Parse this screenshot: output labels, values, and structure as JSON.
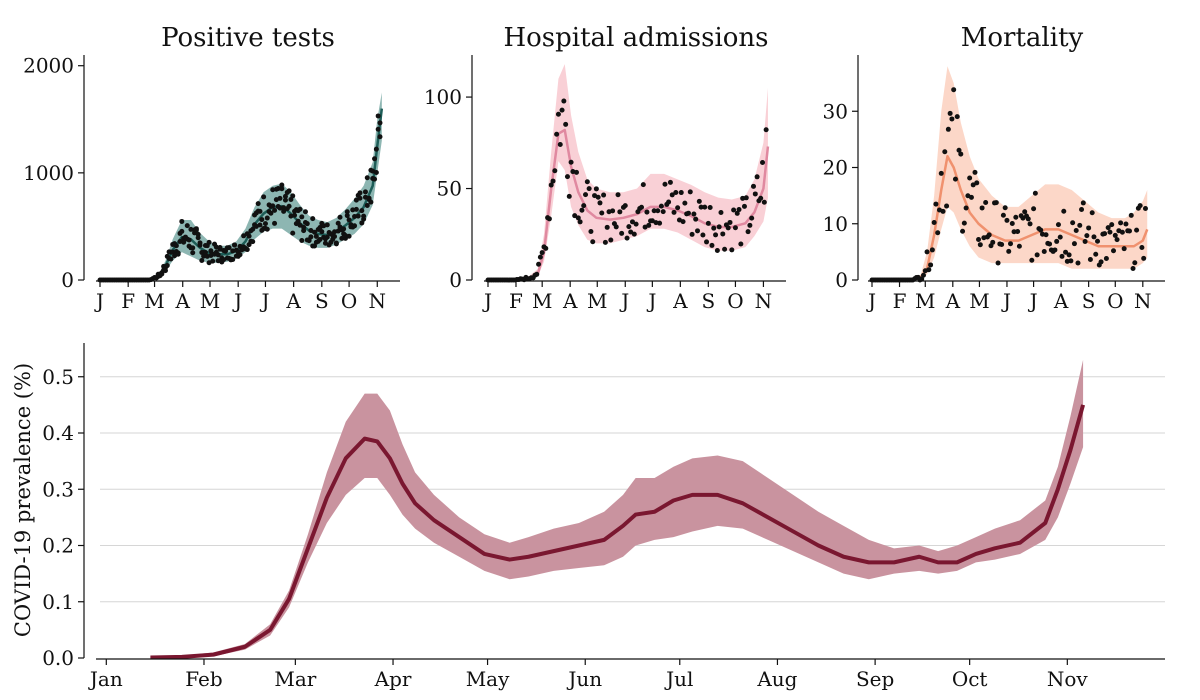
{
  "chart_data": [
    {
      "type": "line",
      "title": "Positive tests",
      "ylim": [
        0,
        2100
      ],
      "yticks": [
        "0",
        "1000",
        "2000"
      ],
      "ytick_values": [
        0,
        1000,
        2000
      ],
      "xlim": [
        0,
        330
      ],
      "xticks": [
        "J",
        "F",
        "M",
        "A",
        "M",
        "J",
        "J",
        "A",
        "S",
        "O",
        "N"
      ],
      "xtick_values": [
        0,
        31,
        60,
        91,
        121,
        152,
        182,
        213,
        244,
        274,
        305
      ],
      "series": [
        {
          "kind": "band",
          "color": "#2f7a72",
          "x": [
            0,
            40,
            55,
            65,
            72,
            80,
            90,
            100,
            110,
            120,
            130,
            140,
            150,
            160,
            170,
            180,
            190,
            200,
            210,
            220,
            230,
            240,
            250,
            260,
            270,
            280,
            290,
            300,
            305,
            310
          ],
          "lower": [
            0,
            0,
            0,
            20,
            80,
            180,
            260,
            220,
            180,
            160,
            160,
            170,
            200,
            260,
            380,
            450,
            480,
            480,
            420,
            360,
            320,
            300,
            300,
            330,
            380,
            430,
            520,
            700,
            1000,
            1300
          ],
          "upper": [
            0,
            0,
            0,
            60,
            180,
            380,
            560,
            560,
            440,
            360,
            320,
            320,
            360,
            480,
            680,
            820,
            880,
            900,
            820,
            700,
            600,
            560,
            540,
            580,
            660,
            760,
            880,
            1100,
            1500,
            1750
          ]
        },
        {
          "kind": "line",
          "color": "#1d5d57",
          "x": [
            0,
            40,
            55,
            65,
            72,
            80,
            90,
            100,
            110,
            120,
            130,
            140,
            150,
            160,
            170,
            180,
            190,
            200,
            210,
            220,
            230,
            240,
            250,
            260,
            270,
            280,
            290,
            300,
            305,
            310
          ],
          "y": [
            0,
            0,
            0,
            40,
            130,
            280,
            400,
            380,
            300,
            250,
            240,
            240,
            270,
            360,
            520,
            620,
            680,
            690,
            620,
            530,
            460,
            430,
            420,
            450,
            510,
            580,
            680,
            880,
            1250,
            1600
          ]
        }
      ],
      "scatter_color": "#111111"
    },
    {
      "type": "line",
      "title": "Hospital admissions",
      "ylim": [
        0,
        123
      ],
      "yticks": [
        "0",
        "50",
        "100"
      ],
      "ytick_values": [
        0,
        50,
        100
      ],
      "xlim": [
        0,
        330
      ],
      "xticks": [
        "J",
        "F",
        "M",
        "A",
        "M",
        "J",
        "J",
        "A",
        "S",
        "O",
        "N"
      ],
      "xtick_values": [
        0,
        31,
        60,
        91,
        121,
        152,
        182,
        213,
        244,
        274,
        305
      ],
      "series": [
        {
          "kind": "band",
          "color": "#f8c8cf",
          "x": [
            0,
            30,
            45,
            55,
            62,
            70,
            78,
            85,
            92,
            100,
            110,
            120,
            135,
            150,
            165,
            180,
            195,
            210,
            225,
            240,
            255,
            270,
            285,
            295,
            305,
            310
          ],
          "lower": [
            0,
            0,
            0,
            2,
            10,
            35,
            65,
            60,
            40,
            30,
            22,
            20,
            20,
            22,
            24,
            28,
            28,
            26,
            22,
            18,
            16,
            16,
            18,
            24,
            32,
            45
          ],
          "upper": [
            0,
            0,
            2,
            6,
            25,
            70,
            110,
            118,
            90,
            70,
            55,
            50,
            48,
            48,
            50,
            58,
            58,
            55,
            52,
            48,
            45,
            44,
            46,
            55,
            75,
            105
          ]
        },
        {
          "kind": "line",
          "color": "#e089a0",
          "x": [
            0,
            30,
            45,
            55,
            62,
            70,
            78,
            85,
            92,
            100,
            110,
            120,
            135,
            150,
            165,
            180,
            195,
            210,
            225,
            240,
            255,
            270,
            285,
            295,
            305,
            310
          ],
          "y": [
            0,
            0,
            0,
            3,
            15,
            50,
            80,
            82,
            62,
            48,
            38,
            34,
            33,
            34,
            36,
            40,
            40,
            38,
            35,
            31,
            29,
            29,
            31,
            37,
            50,
            73
          ]
        }
      ],
      "scatter_color": "#111111"
    },
    {
      "type": "line",
      "title": "Mortality",
      "ylim": [
        0,
        40
      ],
      "yticks": [
        "0",
        "10",
        "20",
        "30"
      ],
      "ytick_values": [
        0,
        10,
        20,
        30
      ],
      "xlim": [
        0,
        330
      ],
      "xticks": [
        "J",
        "F",
        "M",
        "A",
        "M",
        "J",
        "J",
        "A",
        "S",
        "O",
        "N"
      ],
      "xtick_values": [
        0,
        31,
        60,
        91,
        121,
        152,
        182,
        213,
        244,
        274,
        305
      ],
      "series": [
        {
          "kind": "band",
          "color": "#fbd0be",
          "x": [
            0,
            30,
            45,
            55,
            62,
            70,
            78,
            85,
            92,
            100,
            110,
            120,
            135,
            150,
            165,
            180,
            195,
            210,
            225,
            240,
            255,
            270,
            285,
            295,
            305,
            310
          ],
          "lower": [
            0,
            0,
            0,
            0,
            1,
            4,
            9,
            13,
            12,
            9,
            6,
            4,
            3,
            3,
            3,
            3,
            3,
            3,
            2,
            2,
            2,
            2,
            2,
            2,
            3,
            4
          ],
          "upper": [
            0,
            0,
            0,
            1,
            5,
            15,
            30,
            38,
            35,
            28,
            22,
            18,
            15,
            13,
            13,
            15,
            17,
            17,
            16,
            14,
            12,
            11,
            11,
            12,
            14,
            16
          ]
        },
        {
          "kind": "line",
          "color": "#f0916e",
          "x": [
            0,
            30,
            45,
            55,
            62,
            70,
            78,
            85,
            92,
            100,
            110,
            120,
            135,
            150,
            165,
            180,
            195,
            210,
            225,
            240,
            255,
            270,
            285,
            295,
            305,
            310
          ],
          "y": [
            0,
            0,
            0,
            0.5,
            2,
            8,
            16,
            22,
            20,
            16,
            12,
            10,
            8,
            7,
            7,
            8,
            9,
            9,
            8,
            7,
            6,
            6,
            6,
            6,
            7,
            9
          ]
        }
      ],
      "scatter_color": "#111111"
    },
    {
      "type": "line",
      "title": "",
      "ylabel": "COVID-19 prevalence (%)",
      "ylim": [
        0,
        0.56
      ],
      "yticks": [
        "0.0",
        "0.1",
        "0.2",
        "0.3",
        "0.4",
        "0.5"
      ],
      "ytick_values": [
        0,
        0.1,
        0.2,
        0.3,
        0.4,
        0.5
      ],
      "grid": true,
      "xlim": [
        -2,
        336
      ],
      "xticks": [
        "Jan",
        "Feb",
        "Mar",
        "Apr",
        "May",
        "Jun",
        "Jul",
        "Aug",
        "Sep",
        "Oct",
        "Nov"
      ],
      "xtick_values": [
        0,
        31,
        60,
        91,
        121,
        152,
        182,
        213,
        244,
        274,
        305
      ],
      "series": [
        {
          "kind": "band",
          "color": "#c9939f",
          "x": [
            14,
            24,
            34,
            44,
            52,
            58,
            64,
            70,
            76,
            82,
            86,
            90,
            94,
            98,
            104,
            112,
            120,
            128,
            134,
            142,
            150,
            158,
            164,
            168,
            174,
            180,
            186,
            194,
            202,
            210,
            218,
            226,
            234,
            242,
            250,
            258,
            264,
            270,
            276,
            282,
            290,
            298,
            302,
            306,
            310
          ],
          "lower": [
            0,
            0,
            0.003,
            0.015,
            0.04,
            0.09,
            0.17,
            0.24,
            0.29,
            0.32,
            0.32,
            0.29,
            0.255,
            0.23,
            0.205,
            0.18,
            0.155,
            0.14,
            0.145,
            0.155,
            0.16,
            0.165,
            0.18,
            0.2,
            0.21,
            0.215,
            0.225,
            0.235,
            0.23,
            0.21,
            0.19,
            0.17,
            0.15,
            0.14,
            0.15,
            0.155,
            0.15,
            0.155,
            0.17,
            0.175,
            0.185,
            0.21,
            0.25,
            0.31,
            0.375
          ],
          "upper": [
            0.002,
            0.004,
            0.01,
            0.025,
            0.06,
            0.12,
            0.22,
            0.33,
            0.42,
            0.47,
            0.47,
            0.44,
            0.38,
            0.33,
            0.29,
            0.25,
            0.22,
            0.205,
            0.215,
            0.23,
            0.24,
            0.26,
            0.29,
            0.32,
            0.32,
            0.34,
            0.355,
            0.36,
            0.35,
            0.32,
            0.29,
            0.26,
            0.235,
            0.21,
            0.195,
            0.2,
            0.19,
            0.2,
            0.215,
            0.23,
            0.245,
            0.28,
            0.34,
            0.43,
            0.53
          ]
        },
        {
          "kind": "line",
          "color": "#7a1730",
          "x": [
            14,
            24,
            34,
            44,
            52,
            58,
            64,
            70,
            76,
            82,
            86,
            90,
            94,
            98,
            104,
            112,
            120,
            128,
            134,
            142,
            150,
            158,
            164,
            168,
            174,
            180,
            186,
            194,
            202,
            210,
            218,
            226,
            234,
            242,
            250,
            258,
            264,
            270,
            276,
            282,
            290,
            298,
            302,
            306,
            310
          ],
          "y": [
            0.001,
            0.002,
            0.006,
            0.02,
            0.05,
            0.105,
            0.195,
            0.285,
            0.355,
            0.39,
            0.385,
            0.355,
            0.31,
            0.275,
            0.245,
            0.215,
            0.185,
            0.175,
            0.18,
            0.19,
            0.2,
            0.21,
            0.235,
            0.255,
            0.26,
            0.28,
            0.29,
            0.29,
            0.275,
            0.25,
            0.225,
            0.2,
            0.18,
            0.17,
            0.17,
            0.18,
            0.17,
            0.17,
            0.185,
            0.195,
            0.205,
            0.24,
            0.3,
            0.37,
            0.45
          ]
        }
      ]
    }
  ]
}
